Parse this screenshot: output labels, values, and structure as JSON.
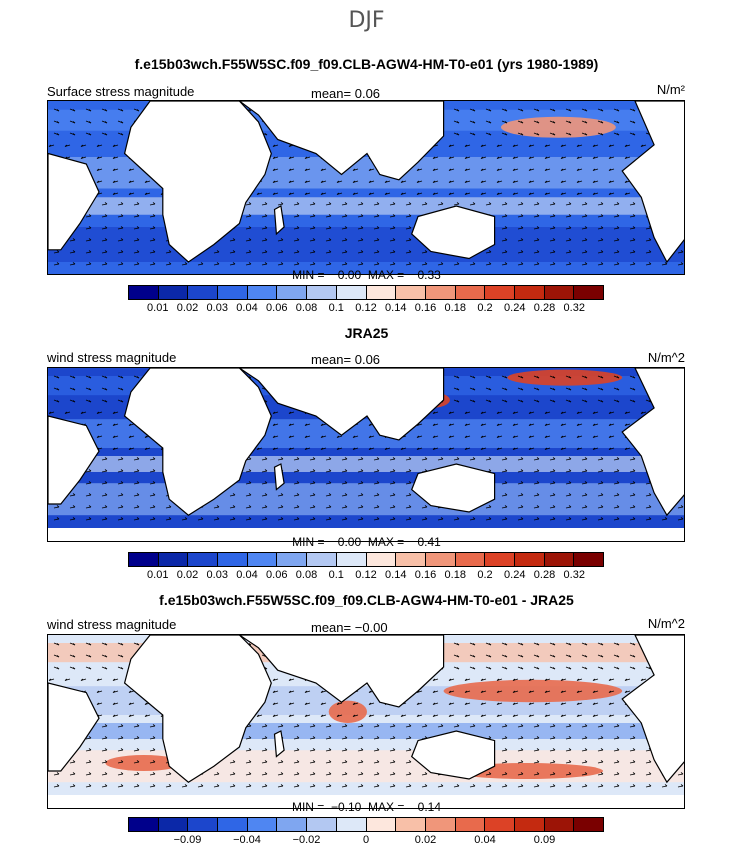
{
  "figure": {
    "title": "DJF"
  },
  "colors": {
    "levels": [
      "#00008b",
      "#0b28a8",
      "#1c46cc",
      "#2f66e6",
      "#4f86f2",
      "#7fa6f0",
      "#b3c8f2",
      "#dde8f8",
      "#fde7dd",
      "#f8c0a8",
      "#f0967a",
      "#e86a4c",
      "#dc4226",
      "#c42a10",
      "#9c1406",
      "#7a0000"
    ],
    "land": "#ffffff",
    "coast": "#000000"
  },
  "chart_data": [
    {
      "type": "heatmap",
      "title": "f.e15b03wch.F55W5SC.f09_f09.CLB-AGW4-HM-T0-e01 (yrs 1980-1989)",
      "label": "Surface stress magnitude",
      "mean_text": "mean=    0.06",
      "units": "N/m²",
      "minmax_text": "MIN =    0.00  MAX =    0.33",
      "colorbar_ticks": [
        "0.01",
        "0.02",
        "0.03",
        "0.04",
        "0.06",
        "0.08",
        "0.1",
        "0.12",
        "0.14",
        "0.16",
        "0.18",
        "0.2",
        "0.24",
        "0.28",
        "0.32"
      ],
      "min": 0.0,
      "max": 0.33,
      "mean": 0.06
    },
    {
      "type": "heatmap",
      "title": "JRA25",
      "label": "wind stress magnitude",
      "mean_text": "mean=    0.06",
      "units": "N/m^2",
      "minmax_text": "MIN =    0.00  MAX =    0.41",
      "colorbar_ticks": [
        "0.01",
        "0.02",
        "0.03",
        "0.04",
        "0.06",
        "0.08",
        "0.1",
        "0.12",
        "0.14",
        "0.16",
        "0.18",
        "0.2",
        "0.24",
        "0.28",
        "0.32"
      ],
      "min": 0.0,
      "max": 0.41,
      "mean": 0.06
    },
    {
      "type": "heatmap",
      "title": "f.e15b03wch.F55W5SC.f09_f09.CLB-AGW4-HM-T0-e01 - JRA25",
      "label": "wind stress magnitude",
      "mean_text": "mean=   −0.00",
      "units": "N/m^2",
      "minmax_text": "MIN =  −0.10  MAX =    0.14",
      "colorbar_ticks": [
        "−0.09",
        "−0.04",
        "−0.02",
        "0",
        "0.02",
        "0.04",
        "0.09"
      ],
      "min": -0.1,
      "max": 0.14,
      "mean": -0.0
    }
  ]
}
